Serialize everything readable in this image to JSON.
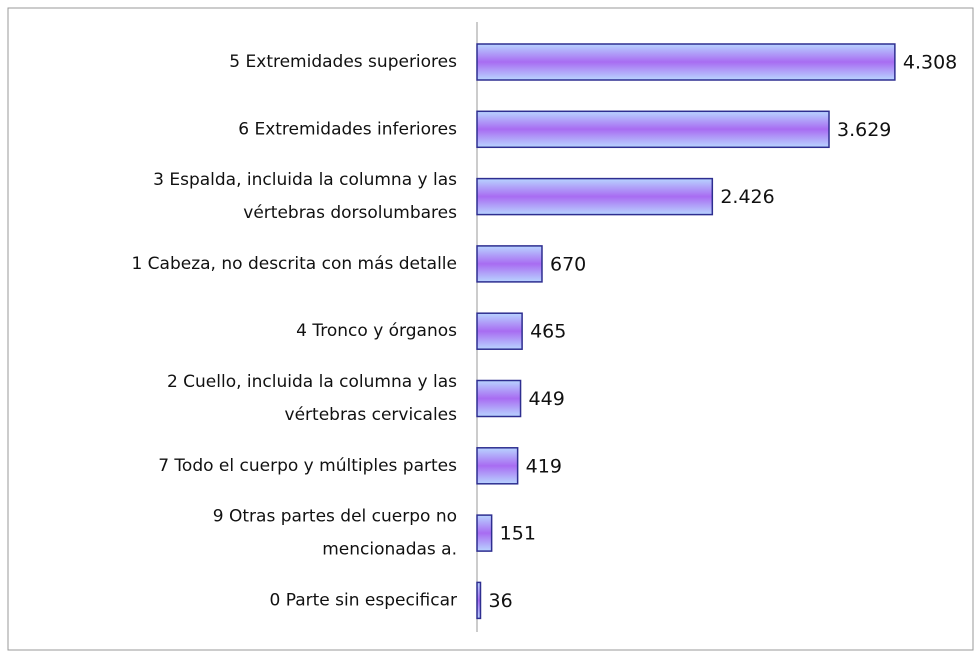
{
  "chart_data": {
    "type": "bar",
    "orientation": "horizontal",
    "categories": [
      "5 Extremidades superiores",
      "6 Extremidades inferiores",
      "3 Espalda, incluida la columna y las vértebras dorsolumbares",
      "1 Cabeza, no descrita con más detalle",
      "4 Tronco y órganos",
      "2 Cuello, incluida la columna y las vértebras cervicales",
      "7 Todo el cuerpo y múltiples partes",
      "9 Otras partes del cuerpo no mencionadas a.",
      "0 Parte sin especificar"
    ],
    "values": [
      4308,
      3629,
      2426,
      670,
      465,
      449,
      419,
      151,
      36
    ],
    "value_labels": [
      "4.308",
      "3.629",
      "2.426",
      "670",
      "465",
      "449",
      "419",
      "151",
      "36"
    ],
    "xlim": [
      0,
      5000
    ],
    "color": "#a070f0"
  }
}
